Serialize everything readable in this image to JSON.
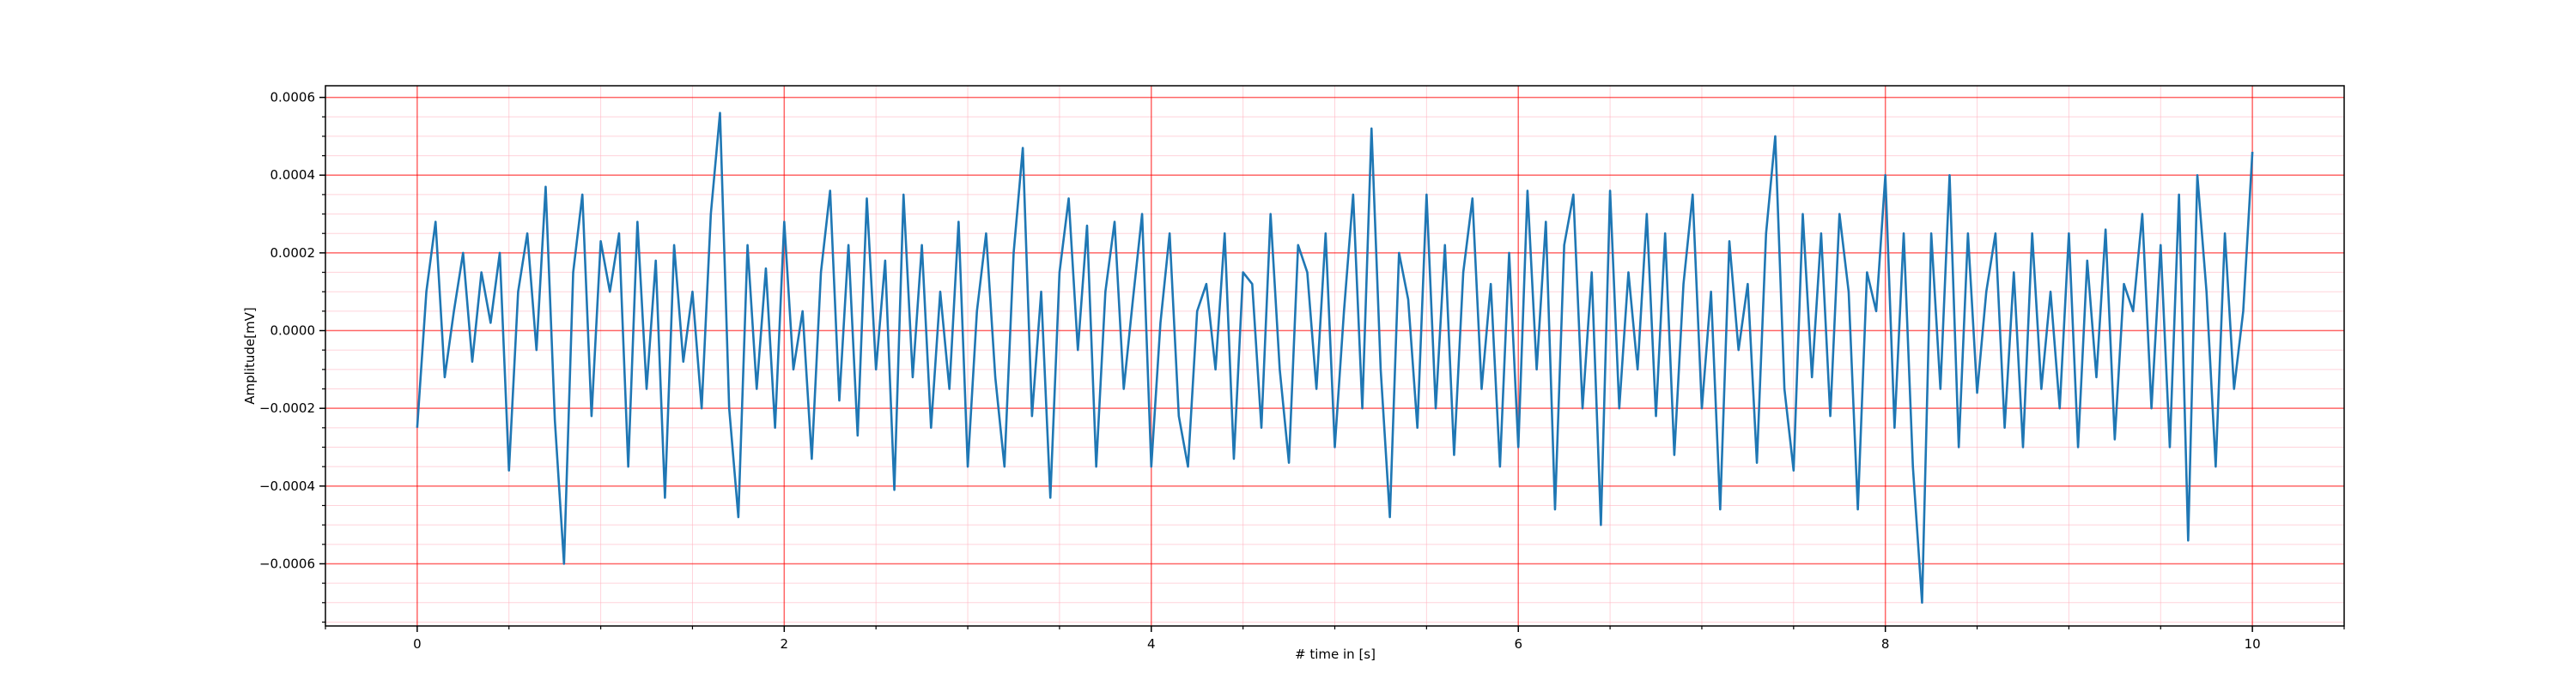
{
  "chart_data": {
    "type": "line",
    "xlabel": "# time in [s]",
    "ylabel": "Amplitude[mV]",
    "color": "#1f77b4",
    "grid": true,
    "grid_color": "#ff0000",
    "minor_grid": true,
    "minor_grid_color": "#ffb6c1",
    "xlim": [
      -0.5,
      10.5
    ],
    "ylim": [
      -0.00076,
      0.00063
    ],
    "xticks": [
      0,
      2,
      4,
      6,
      8,
      10
    ],
    "yticks": [
      {
        "value": -0.0006,
        "label": "−0.0006"
      },
      {
        "value": -0.0004,
        "label": "−0.0004"
      },
      {
        "value": -0.0002,
        "label": "−0.0002"
      },
      {
        "value": 0,
        "label": "0.0000"
      },
      {
        "value": 0.0002,
        "label": "0.0002"
      },
      {
        "value": 0.0004,
        "label": "0.0004"
      },
      {
        "value": 0.0006,
        "label": "0.0006"
      }
    ],
    "xminorticks": [
      -0.5,
      0.5,
      1,
      1.5,
      2.5,
      3,
      3.5,
      4.5,
      5,
      5.5,
      6.5,
      7,
      7.5,
      8.5,
      9,
      9.5,
      10.5
    ],
    "yminorticks": [
      -0.00075,
      -0.0007,
      -0.00065,
      -0.00055,
      -0.0005,
      -0.00045,
      -0.00035,
      -0.0003,
      -0.00025,
      -0.00015,
      -0.0001,
      -5e-05,
      5e-05,
      0.0001,
      0.00015,
      0.00025,
      0.0003,
      0.00035,
      0.00045,
      0.0005,
      0.00055
    ],
    "x": [
      0,
      0.05,
      0.1,
      0.15,
      0.2,
      0.25,
      0.3,
      0.35,
      0.4,
      0.45,
      0.5,
      0.55,
      0.6,
      0.65,
      0.7,
      0.75,
      0.8,
      0.85,
      0.9,
      0.95,
      1,
      1.05,
      1.1,
      1.15,
      1.2,
      1.25,
      1.3,
      1.35,
      1.4,
      1.45,
      1.5,
      1.55,
      1.6,
      1.65,
      1.7,
      1.75,
      1.8,
      1.85,
      1.9,
      1.95,
      2,
      2.05,
      2.1,
      2.15,
      2.2,
      2.25,
      2.3,
      2.35,
      2.4,
      2.45,
      2.5,
      2.55,
      2.6,
      2.65,
      2.7,
      2.75,
      2.8,
      2.85,
      2.9,
      2.95,
      3,
      3.05,
      3.1,
      3.15,
      3.2,
      3.25,
      3.3,
      3.35,
      3.4,
      3.45,
      3.5,
      3.55,
      3.6,
      3.65,
      3.7,
      3.75,
      3.8,
      3.85,
      3.9,
      3.95,
      4,
      4.05,
      4.1,
      4.15,
      4.2,
      4.25,
      4.3,
      4.35,
      4.4,
      4.45,
      4.5,
      4.55,
      4.6,
      4.65,
      4.7,
      4.75,
      4.8,
      4.85,
      4.9,
      4.95,
      5,
      5.05,
      5.1,
      5.15,
      5.2,
      5.25,
      5.3,
      5.35,
      5.4,
      5.45,
      5.5,
      5.55,
      5.6,
      5.65,
      5.7,
      5.75,
      5.8,
      5.85,
      5.9,
      5.95,
      6,
      6.05,
      6.1,
      6.15,
      6.2,
      6.25,
      6.3,
      6.35,
      6.4,
      6.45,
      6.5,
      6.55,
      6.6,
      6.65,
      6.7,
      6.75,
      6.8,
      6.85,
      6.9,
      6.95,
      7,
      7.05,
      7.1,
      7.15,
      7.2,
      7.25,
      7.3,
      7.35,
      7.4,
      7.45,
      7.5,
      7.55,
      7.6,
      7.65,
      7.7,
      7.75,
      7.8,
      7.85,
      7.9,
      7.95,
      8,
      8.05,
      8.1,
      8.15,
      8.2,
      8.25,
      8.3,
      8.35,
      8.4,
      8.45,
      8.5,
      8.55,
      8.6,
      8.65,
      8.7,
      8.75,
      8.8,
      8.85,
      8.9,
      8.95,
      9,
      9.05,
      9.1,
      9.15,
      9.2,
      9.25,
      9.3,
      9.35,
      9.4,
      9.45,
      9.5,
      9.55,
      9.6,
      9.65,
      9.7,
      9.75,
      9.8,
      9.85,
      9.9,
      9.95,
      10
    ],
    "values": [
      -0.00025,
      0.0001,
      0.00028,
      -0.00012,
      5e-05,
      0.0002,
      -8e-05,
      0.00015,
      2e-05,
      0.0002,
      -0.00036,
      0.0001,
      0.00025,
      -5e-05,
      0.00037,
      -0.00023,
      -0.0006,
      0.00015,
      0.00035,
      -0.00022,
      0.00023,
      0.0001,
      0.00025,
      -0.00035,
      0.00028,
      -0.00015,
      0.00018,
      -0.00043,
      0.00022,
      -8e-05,
      0.0001,
      -0.0002,
      0.0003,
      0.00056,
      -0.0002,
      -0.00048,
      0.00022,
      -0.00015,
      0.00016,
      -0.00025,
      0.00028,
      -0.0001,
      5e-05,
      -0.00033,
      0.00015,
      0.00036,
      -0.00018,
      0.00022,
      -0.00027,
      0.00034,
      -0.0001,
      0.00018,
      -0.00041,
      0.00035,
      -0.00012,
      0.00022,
      -0.00025,
      0.0001,
      -0.00015,
      0.00028,
      -0.00035,
      5e-05,
      0.00025,
      -0.00012,
      -0.00035,
      0.0002,
      0.00047,
      -0.00022,
      0.0001,
      -0.00043,
      0.00015,
      0.00034,
      -5e-05,
      0.00027,
      -0.00035,
      0.0001,
      0.00028,
      -0.00015,
      8e-05,
      0.0003,
      -0.00035,
      2e-05,
      0.00025,
      -0.00022,
      -0.00035,
      5e-05,
      0.00012,
      -0.0001,
      0.00025,
      -0.00033,
      0.00015,
      0.00012,
      -0.00025,
      0.0003,
      -0.0001,
      -0.00034,
      0.00022,
      0.00015,
      -0.00015,
      0.00025,
      -0.0003,
      5e-05,
      0.00035,
      -0.0002,
      0.00052,
      -0.0001,
      -0.00048,
      0.0002,
      8e-05,
      -0.00025,
      0.00035,
      -0.0002,
      0.00022,
      -0.00032,
      0.00015,
      0.00034,
      -0.00015,
      0.00012,
      -0.00035,
      0.0002,
      -0.0003,
      0.00036,
      -0.0001,
      0.00028,
      -0.00046,
      0.00022,
      0.00035,
      -0.0002,
      0.00015,
      -0.0005,
      0.00036,
      -0.0002,
      0.00015,
      -0.0001,
      0.0003,
      -0.00022,
      0.00025,
      -0.00032,
      0.00012,
      0.00035,
      -0.0002,
      0.0001,
      -0.00046,
      0.00023,
      -5e-05,
      0.00012,
      -0.00034,
      0.00025,
      0.0005,
      -0.00015,
      -0.00036,
      0.0003,
      -0.00012,
      0.00025,
      -0.00022,
      0.0003,
      0.0001,
      -0.00046,
      0.00015,
      5e-05,
      0.0004,
      -0.00025,
      0.00025,
      -0.00035,
      -0.0007,
      0.00025,
      -0.00015,
      0.0004,
      -0.0003,
      0.00025,
      -0.00016,
      0.0001,
      0.00025,
      -0.00025,
      0.00015,
      -0.0003,
      0.00025,
      -0.00015,
      0.0001,
      -0.0002,
      0.00025,
      -0.0003,
      0.00018,
      -0.00012,
      0.00026,
      -0.00028,
      0.00012,
      5e-05,
      0.0003,
      -0.0002,
      0.00022,
      -0.0003,
      0.00035,
      -0.00054,
      0.0004,
      0.0001,
      -0.00035,
      0.00025,
      -0.00015,
      5e-05,
      0.00046
    ]
  }
}
